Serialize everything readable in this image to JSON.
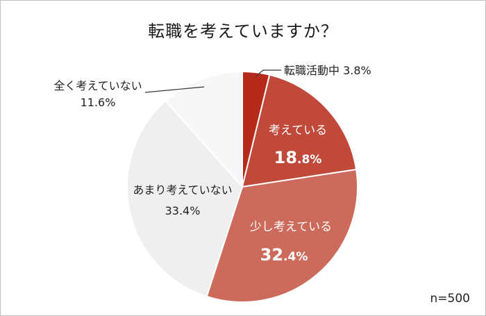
{
  "chart_data": {
    "type": "pie",
    "title": "転職を考えていますか？",
    "sample_size": "n=500",
    "slices": [
      {
        "label": "転職活動中",
        "value_text": "3.8%",
        "value": 3.8,
        "color": "#b52a1a",
        "label_color": "#222222"
      },
      {
        "label": "考えている",
        "value_text": "18.8%",
        "value_main": "18",
        "value_suffix": ".8%",
        "value": 18.8,
        "color": "#c0493a",
        "label_color": "#ffffff"
      },
      {
        "label": "少し考えている",
        "value_text": "32.4%",
        "value_main": "32",
        "value_suffix": ".4%",
        "value": 32.4,
        "color": "#cc6a5c",
        "label_color": "#ffffff"
      },
      {
        "label": "あまり考えていない",
        "value_text": "33.4%",
        "value": 33.4,
        "color": "#efefef",
        "label_color": "#222222"
      },
      {
        "label": "全く考えていない",
        "value_text": "11.6%",
        "value": 11.6,
        "color": "#f7f7f7",
        "label_color": "#222222"
      }
    ],
    "start_angle": "12 o'clock",
    "direction": "clockwise"
  }
}
